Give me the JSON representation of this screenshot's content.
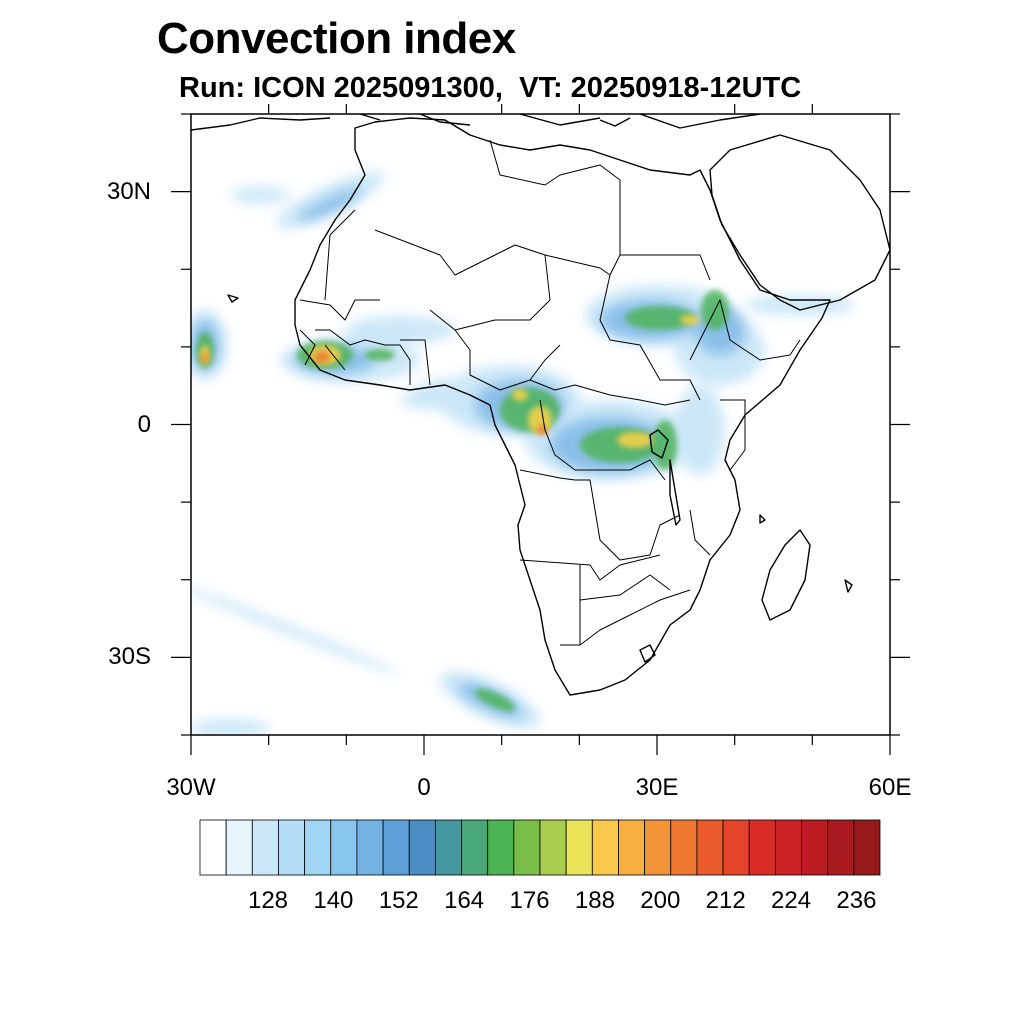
{
  "header": {
    "title": "Convection index",
    "subtitle": "Run: ICON 2025091300,  VT: 20250918-12UTC"
  },
  "map": {
    "projection": "cylindrical equidistant",
    "lon_range": [
      -30,
      60
    ],
    "lat_range": [
      -40,
      40
    ],
    "x_ticks": [
      {
        "lon": -30,
        "label": "30W"
      },
      {
        "lon": 0,
        "label": "0"
      },
      {
        "lon": 30,
        "label": "30E"
      },
      {
        "lon": 60,
        "label": "60E"
      }
    ],
    "y_ticks": [
      {
        "lat": 30,
        "label": "30N"
      },
      {
        "lat": 0,
        "label": "0"
      },
      {
        "lat": -30,
        "label": "30S"
      }
    ]
  },
  "colorbar": {
    "colors": [
      "#ffffff",
      "#e6f4fc",
      "#cbe8f8",
      "#b4def5",
      "#a0d6f4",
      "#88c6ee",
      "#74b3e4",
      "#5e9fd8",
      "#4c8cc4",
      "#4698a0",
      "#48a87a",
      "#4cb454",
      "#7abd48",
      "#a8cc4c",
      "#ece458",
      "#f8c94c",
      "#f8b040",
      "#f49438",
      "#f07830",
      "#ea5a2a",
      "#e44428",
      "#dc2c28",
      "#cc2226",
      "#bc1c22",
      "#a81a20",
      "#961a1c"
    ],
    "labels": [
      "128",
      "140",
      "152",
      "164",
      "176",
      "188",
      "200",
      "212",
      "224",
      "236"
    ]
  }
}
